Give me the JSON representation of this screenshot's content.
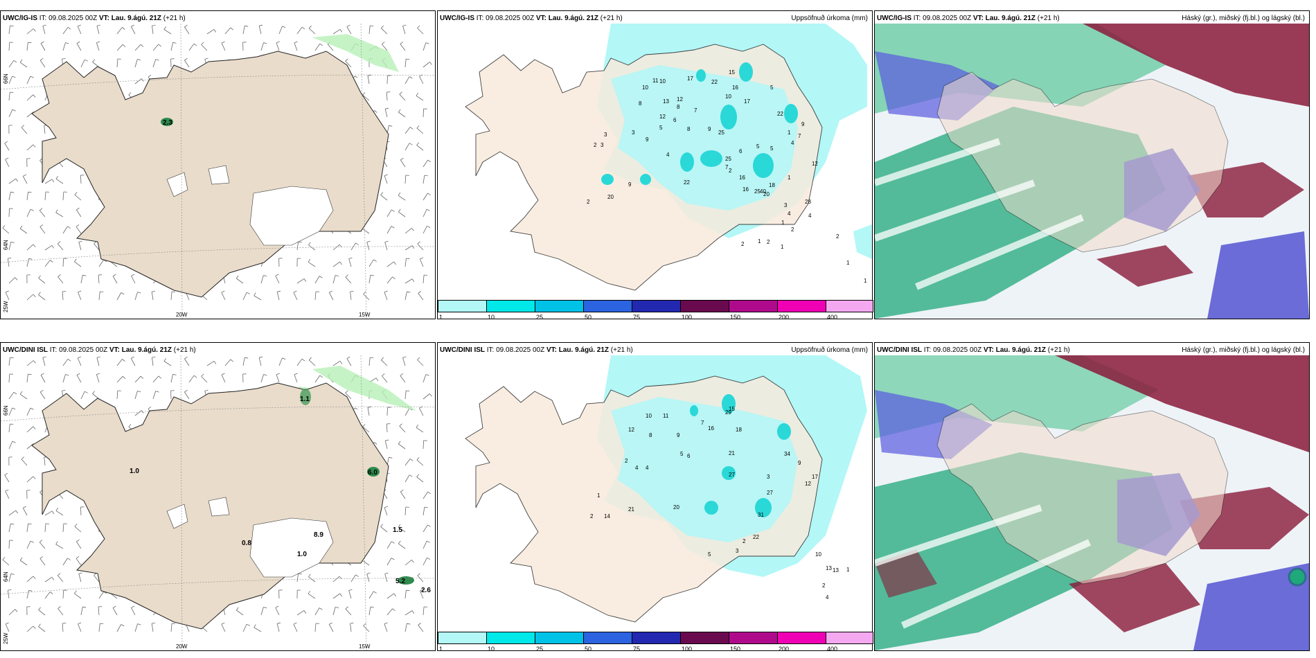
{
  "panels": {
    "top_left": {
      "model": "UWC/IG-IS",
      "it_label": "IT:",
      "it": "09.08.2025 00Z",
      "vt_label": "VT:",
      "vt": "Lau. 9.ágú. 21Z",
      "lead": "(+21 h)",
      "right_title": ""
    },
    "top_center": {
      "model": "UWC/IG-IS",
      "it_label": "IT:",
      "it": "09.08.2025 00Z",
      "vt_label": "VT:",
      "vt": "Lau. 9.ágú. 21Z",
      "lead": "(+21 h)",
      "right_title": "Uppsöfnuð úrkoma (mm)"
    },
    "top_right": {
      "model": "UWC/IG-IS",
      "it_label": "IT:",
      "it": "09.08.2025 00Z",
      "vt_label": "VT:",
      "vt": "Lau. 9.ágú. 21Z",
      "lead": "(+21 h)",
      "right_title": "Háský (gr.), miðský (fj.bl.) og lágský (bl.)"
    },
    "bottom_left": {
      "model": "UWC/DINI ISL",
      "it_label": "IT:",
      "it": "09.08.2025 00Z",
      "vt_label": "VT:",
      "vt": "Lau. 9.ágú. 21Z",
      "lead": "(+21 h)",
      "right_title": ""
    },
    "bottom_center": {
      "model": "UWC/DINI ISL",
      "it_label": "IT:",
      "it": "09.08.2025 00Z",
      "vt_label": "VT:",
      "vt": "Lau. 9.ágú. 21Z",
      "lead": "(+21 h)",
      "right_title": "Uppsöfnuð úrkoma (mm)"
    },
    "bottom_right": {
      "model": "UWC/DINI ISL",
      "it_label": "IT:",
      "it": "09.08.2025 00Z",
      "vt_label": "VT:",
      "vt": "Lau. 9.ágú. 21Z",
      "lead": "(+21 h)",
      "right_title": "Háský (gr.), miðský (fj.bl.) og lágský (bl.)"
    }
  },
  "graticule": {
    "lat_66": "66N",
    "lat_64": "64N",
    "lon_25": "25W",
    "lon_20": "20W",
    "lon_15": "15W"
  },
  "colorbar": {
    "ticks": [
      "1",
      "10",
      "25",
      "50",
      "75",
      "100",
      "150",
      "200",
      "400"
    ],
    "colors": [
      "#b3f7f7",
      "#00e8e8",
      "#00c2e6",
      "#2b63e0",
      "#2228b0",
      "#6a0a4e",
      "#b00a8c",
      "#f000b4",
      "#f4a8f0"
    ]
  },
  "colors": {
    "land": "#e9dccb",
    "land_light": "#f8ebdc",
    "sea": "#ffffff",
    "precip_light": "#b3f7f7",
    "precip_mid": "#00e8e8",
    "high_cloud": "#1fa87a",
    "mid_cloud": "#4a4ad0",
    "low_cloud": "#8a1a3a"
  },
  "precip_top": [
    "17",
    "11",
    "10",
    "15",
    "10",
    "16",
    "22",
    "10",
    "12",
    "8",
    "13",
    "17",
    "8",
    "12",
    "7",
    "5",
    "22",
    "6",
    "5",
    "9",
    "3",
    "25",
    "8",
    "1",
    "3",
    "9",
    "7",
    "9",
    "2",
    "3",
    "5",
    "5",
    "6",
    "4",
    "25",
    "7",
    "4",
    "12",
    "1",
    "16",
    "2",
    "25",
    "22",
    "18",
    "20",
    "9",
    "2",
    "20",
    "16",
    "40",
    "28",
    "3",
    "4",
    "1",
    "2",
    "1",
    "2",
    "2",
    "1",
    "4",
    "2",
    "1",
    "1"
  ],
  "precip_bottom": [
    "10",
    "11",
    "15",
    "29",
    "12",
    "18",
    "16",
    "7",
    "8",
    "9",
    "21",
    "5",
    "27",
    "4",
    "34",
    "6",
    "4",
    "2",
    "9",
    "17",
    "12",
    "3",
    "27",
    "1",
    "2",
    "14",
    "21",
    "20",
    "31",
    "22",
    "2",
    "3",
    "5",
    "10",
    "13",
    "13",
    "1",
    "2",
    "4"
  ],
  "wind_labels_top": [
    "2.3"
  ],
  "wind_labels_bottom": [
    "1.1",
    "1.0",
    "6.0",
    "0.8",
    "8.9",
    "1.0",
    "1.5",
    "5.2",
    "2.6"
  ]
}
